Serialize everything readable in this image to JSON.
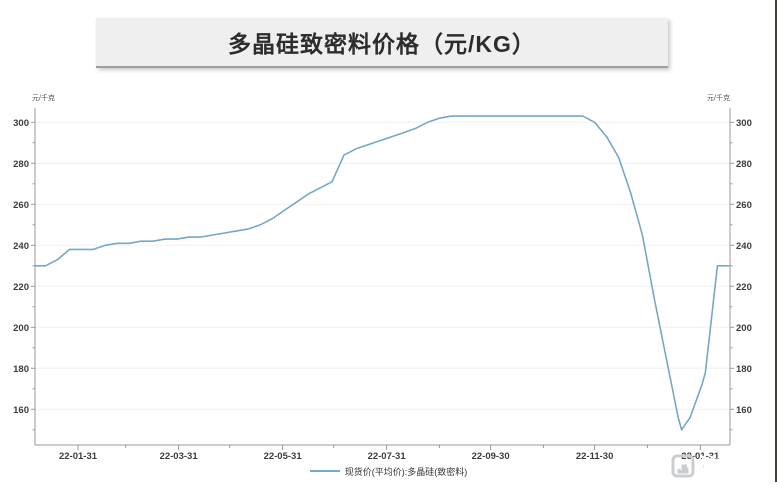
{
  "chart_data": {
    "type": "line",
    "title": "多晶硅致密料价格（元/KG）",
    "grid": "horizontal",
    "legend_position": "bottom-center",
    "line_color": "#74a7cb",
    "y_axis": {
      "unit": "元/千克",
      "ticks": [
        160,
        180,
        200,
        220,
        240,
        260,
        280,
        300
      ],
      "minor_step": 10,
      "ylim": [
        142,
        307
      ]
    },
    "x_axis": {
      "tick_labels": [
        "22-01-31",
        "22-03-31",
        "22-05-31",
        "22-07-31",
        "22-09-30",
        "22-11-30",
        "23-01-31"
      ],
      "minor_tick_dates": [
        "2022-02-28",
        "2022-04-30",
        "2022-06-30",
        "2022-08-31",
        "2022-10-31",
        "2022-12-31"
      ],
      "xlim": [
        "2022-01-06",
        "2023-02-17"
      ]
    },
    "legend": {
      "items": [
        {
          "label": "现货价(平均价):多晶硅(致密料)",
          "color": "#74a7cb"
        }
      ]
    },
    "series": [
      {
        "name": "现货价(平均价):多晶硅(致密料)",
        "points": [
          [
            "2022-01-06",
            230
          ],
          [
            "2022-01-12",
            230
          ],
          [
            "2022-01-19",
            233
          ],
          [
            "2022-01-26",
            238
          ],
          [
            "2022-02-09",
            238
          ],
          [
            "2022-02-16",
            240
          ],
          [
            "2022-02-23",
            241
          ],
          [
            "2022-03-02",
            241
          ],
          [
            "2022-03-09",
            242
          ],
          [
            "2022-03-16",
            242
          ],
          [
            "2022-03-23",
            243
          ],
          [
            "2022-03-30",
            243
          ],
          [
            "2022-04-06",
            244
          ],
          [
            "2022-04-13",
            244
          ],
          [
            "2022-04-20",
            245
          ],
          [
            "2022-04-27",
            246
          ],
          [
            "2022-05-04",
            247
          ],
          [
            "2022-05-11",
            248
          ],
          [
            "2022-05-18",
            250
          ],
          [
            "2022-05-25",
            253
          ],
          [
            "2022-06-01",
            257
          ],
          [
            "2022-06-08",
            261
          ],
          [
            "2022-06-15",
            265
          ],
          [
            "2022-06-22",
            268
          ],
          [
            "2022-06-29",
            271
          ],
          [
            "2022-07-06",
            284
          ],
          [
            "2022-07-13",
            287
          ],
          [
            "2022-07-20",
            289
          ],
          [
            "2022-07-27",
            291
          ],
          [
            "2022-08-03",
            293
          ],
          [
            "2022-08-10",
            295
          ],
          [
            "2022-08-17",
            297
          ],
          [
            "2022-08-24",
            300
          ],
          [
            "2022-08-31",
            302
          ],
          [
            "2022-09-07",
            303
          ],
          [
            "2022-09-14",
            303
          ],
          [
            "2022-09-28",
            303
          ],
          [
            "2022-10-12",
            303
          ],
          [
            "2022-10-26",
            303
          ],
          [
            "2022-11-09",
            303
          ],
          [
            "2022-11-23",
            303
          ],
          [
            "2022-11-30",
            300
          ],
          [
            "2022-12-07",
            293
          ],
          [
            "2022-12-14",
            283
          ],
          [
            "2022-12-21",
            266
          ],
          [
            "2022-12-28",
            245
          ],
          [
            "2023-01-04",
            214
          ],
          [
            "2023-01-11",
            185
          ],
          [
            "2023-01-18",
            156
          ],
          [
            "2023-01-20",
            150
          ],
          [
            "2023-01-25",
            156
          ],
          [
            "2023-02-01",
            172
          ],
          [
            "2023-02-03",
            178
          ],
          [
            "2023-02-10",
            230
          ],
          [
            "2023-02-17",
            230
          ]
        ]
      }
    ]
  },
  "watermark": {
    "text": "格隆汇"
  },
  "colors": {
    "line": "#74a7cb",
    "banner_bg": "#efefef",
    "axis": "#999999",
    "grid": "#f0f0f0",
    "watermark": "#c9cbcd",
    "right_edge": "#3a423c"
  }
}
